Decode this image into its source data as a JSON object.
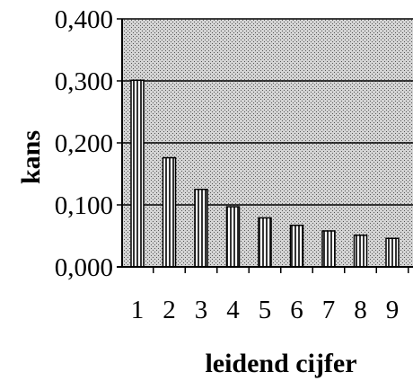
{
  "chart_data": {
    "type": "bar",
    "title": "",
    "xlabel": "leidend cijfer",
    "ylabel": "kans",
    "categories": [
      "1",
      "2",
      "3",
      "4",
      "5",
      "6",
      "7",
      "8",
      "9"
    ],
    "values": [
      0.301,
      0.176,
      0.125,
      0.097,
      0.079,
      0.067,
      0.058,
      0.051,
      0.046
    ],
    "ylim": [
      0,
      0.4
    ],
    "yticks": [
      "0,000",
      "0,100",
      "0,200",
      "0,300",
      "0,400"
    ],
    "grid": true,
    "legend": "none"
  }
}
